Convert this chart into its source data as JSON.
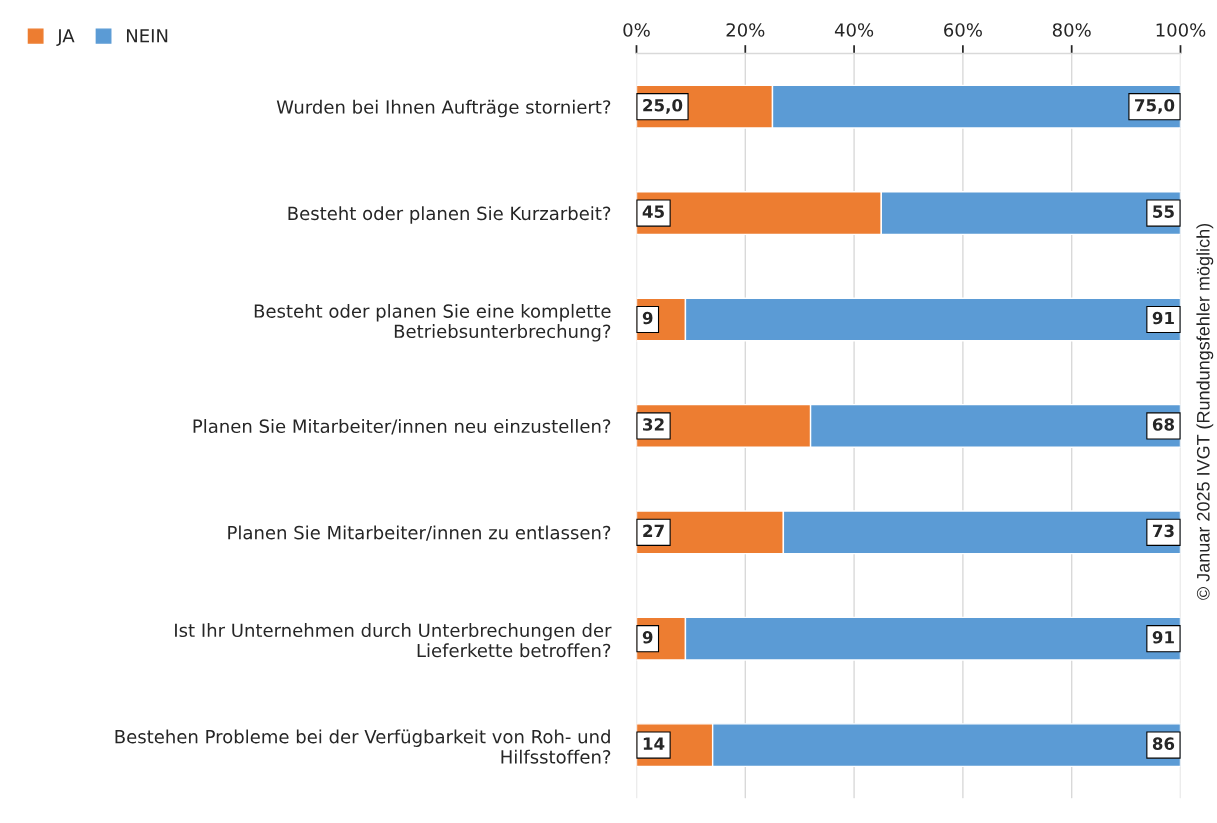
{
  "chart_data": {
    "type": "bar",
    "orientation": "horizontal",
    "stacked": true,
    "categories": [
      "Wurden bei Ihnen Aufträge storniert?",
      "Besteht oder planen Sie Kurzarbeit?",
      "Besteht oder planen Sie eine komplette\nBetriebsunterbrechung?",
      "Planen Sie Mitarbeiter/innen neu einzustellen?",
      "Planen Sie Mitarbeiter/innen zu entlassen?",
      "Ist Ihr Unternehmen durch Unterbrechungen der\nLieferkette betroffen?",
      "Bestehen Probleme bei der Verfügbarkeit von Roh- und\nHilfsstoffen?"
    ],
    "series": [
      {
        "name": "JA",
        "color": "#ed7d31",
        "values": [
          25,
          45,
          9,
          32,
          27,
          9,
          14
        ],
        "value_labels": [
          "25,0",
          "45",
          "9",
          "32",
          "27",
          "9",
          "14"
        ]
      },
      {
        "name": "NEIN",
        "color": "#5b9bd5",
        "values": [
          75,
          55,
          91,
          68,
          73,
          91,
          86
        ],
        "value_labels": [
          "75,0",
          "55",
          "91",
          "68",
          "73",
          "91",
          "86"
        ]
      }
    ],
    "xlim": [
      0,
      100
    ],
    "xticks": [
      {
        "value": 0,
        "label": "0%"
      },
      {
        "value": 20,
        "label": "20%"
      },
      {
        "value": 40,
        "label": "40%"
      },
      {
        "value": 60,
        "label": "60%"
      },
      {
        "value": 80,
        "label": "80%"
      },
      {
        "value": 100,
        "label": "100%"
      }
    ],
    "grid": "x",
    "legend": "top left",
    "annotations": [
      "© Januar 2025 IVGT (Rundungsfehler möglich)"
    ]
  }
}
